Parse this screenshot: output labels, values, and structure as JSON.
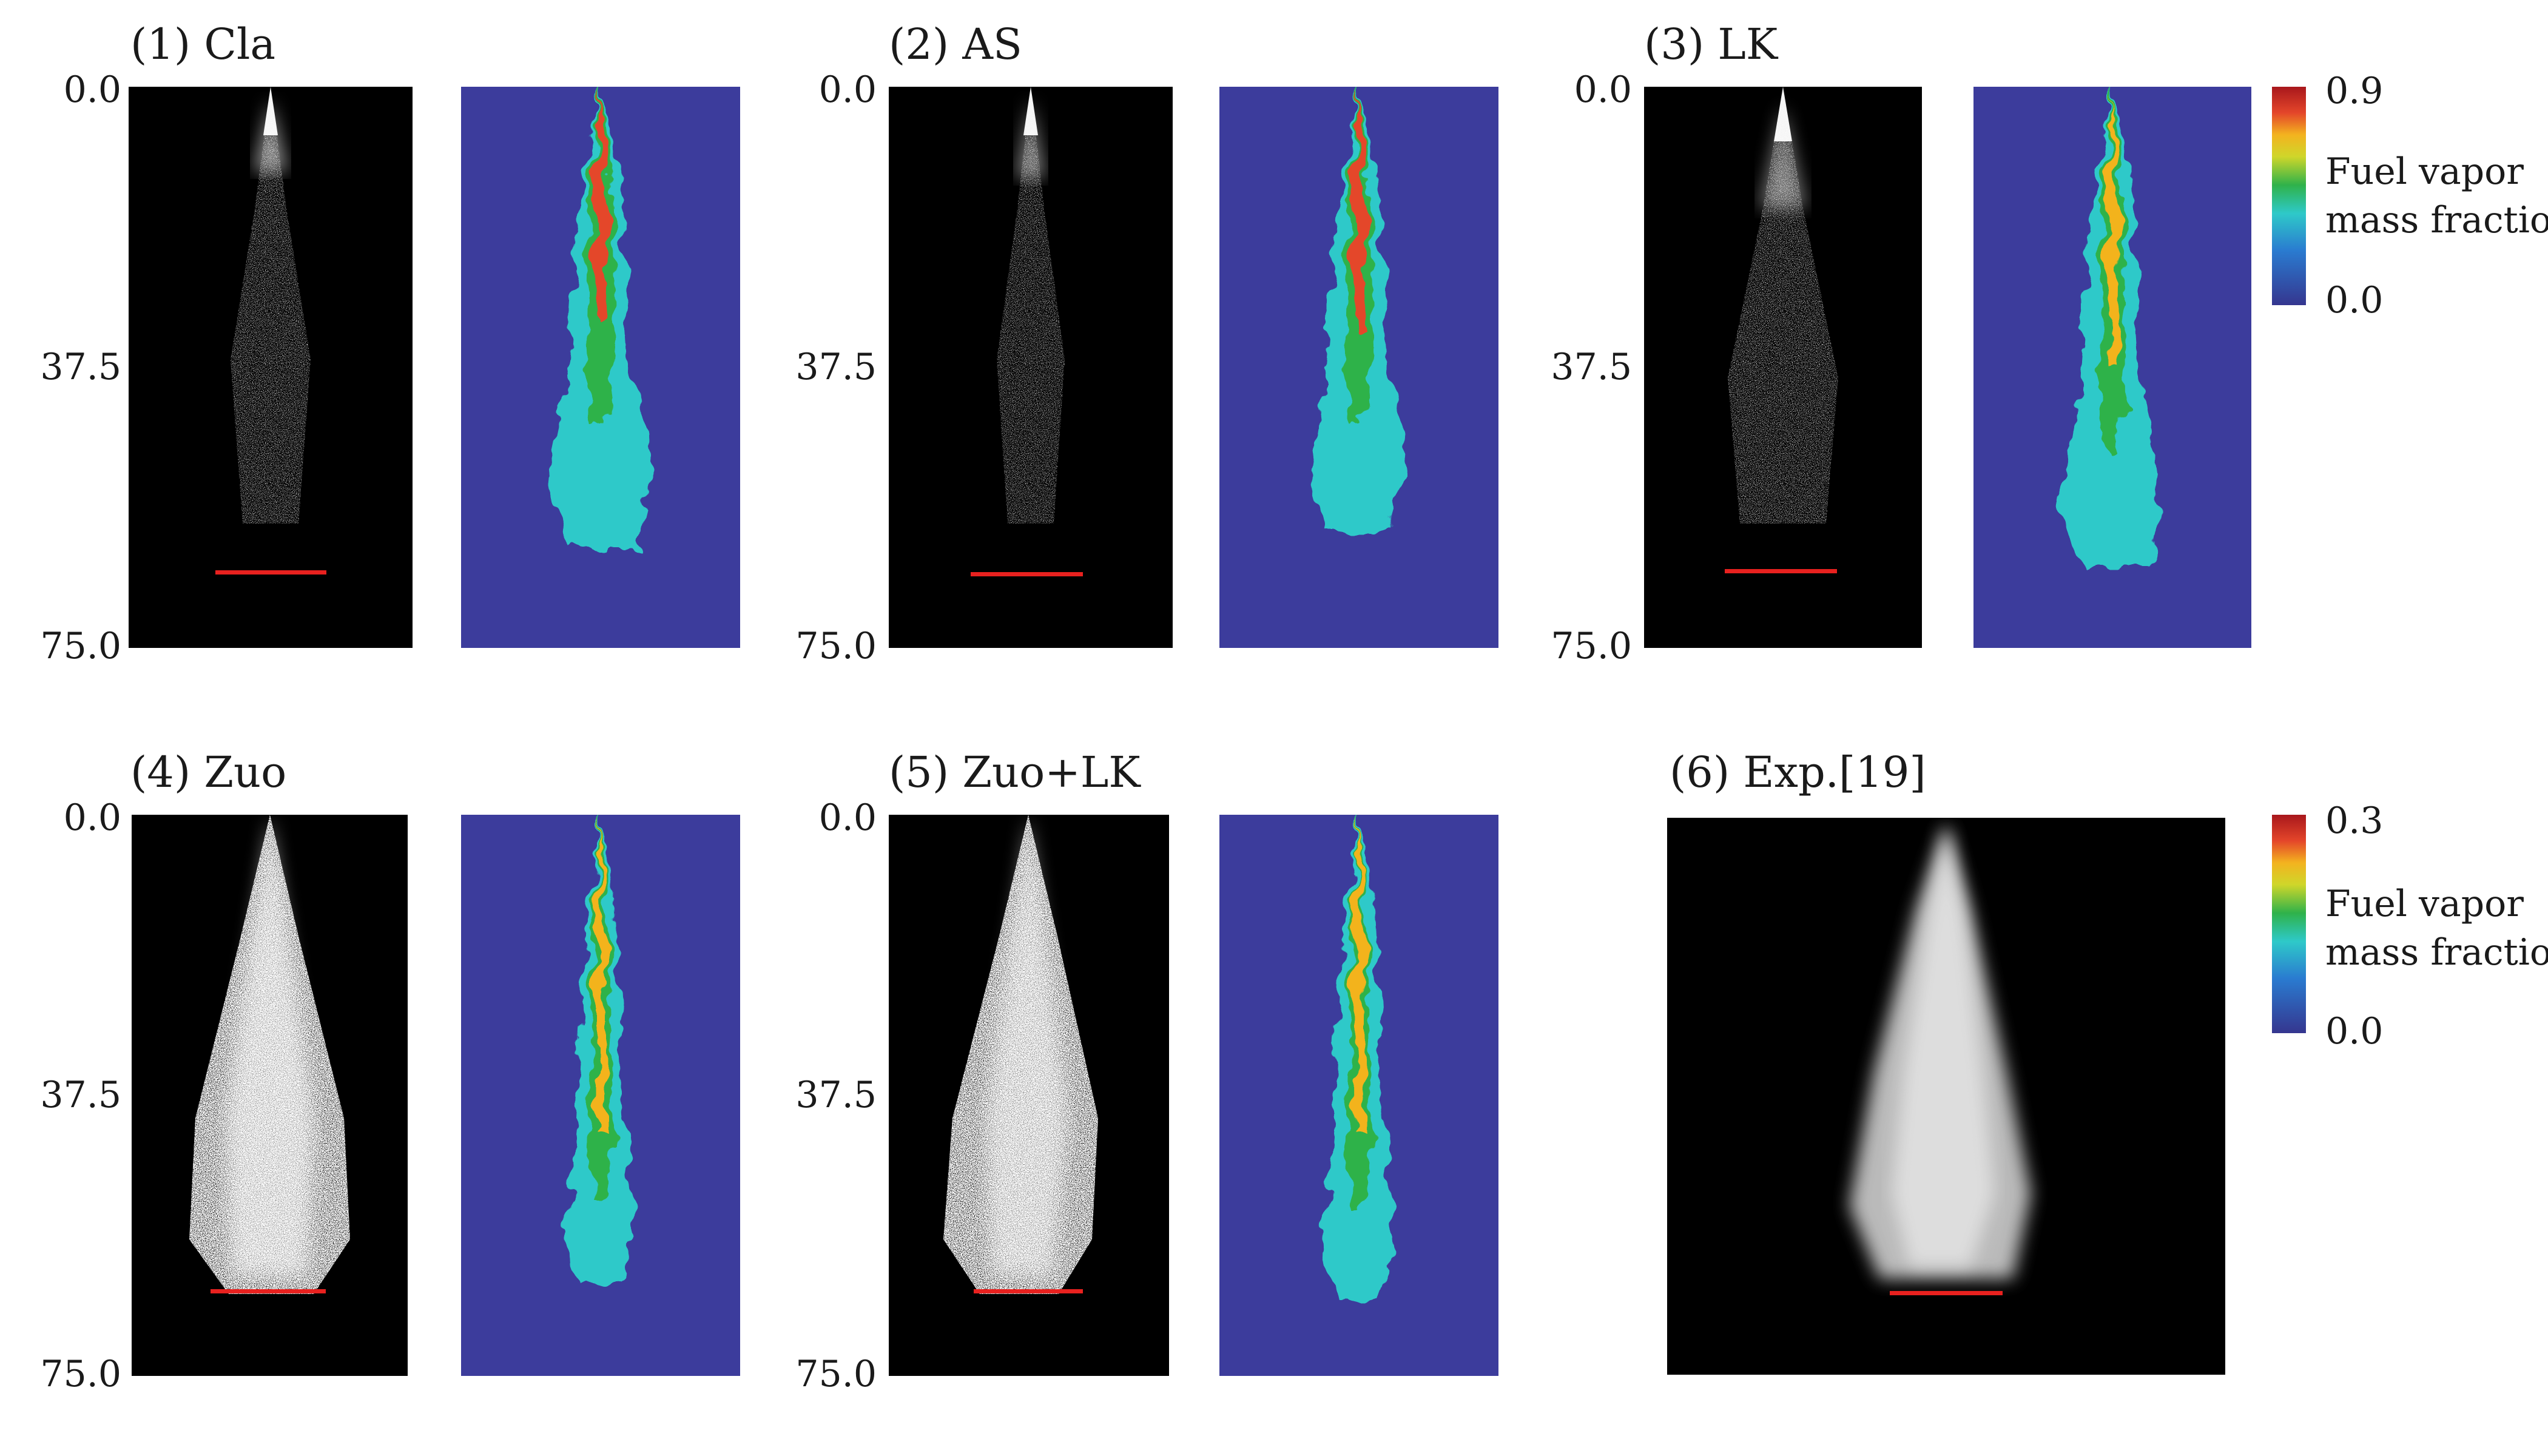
{
  "rows": [
    {
      "axis_ticks": [
        "0.0",
        "37.5",
        "75.0"
      ],
      "cases": [
        {
          "title": "(1) Cla"
        },
        {
          "title": "(2) AS"
        },
        {
          "title": "(3) LK"
        }
      ],
      "colorbar": {
        "max": "0.9",
        "min": "0.0",
        "label_line1": "Fuel vapor",
        "label_line2": "mass fraction"
      }
    },
    {
      "axis_ticks": [
        "0.0",
        "37.5",
        "75.0"
      ],
      "cases": [
        {
          "title": "(4) Zuo"
        },
        {
          "title": "(5) Zuo+LK"
        },
        {
          "title": "(6) Exp.[19]"
        }
      ],
      "colorbar": {
        "max": "0.3",
        "min": "0.0",
        "label_line1": "Fuel vapor",
        "label_line2": "mass fraction"
      }
    }
  ],
  "colors": {
    "plume_background": "#000000",
    "field_background": "#3c3c9c",
    "marker_line": "#e8211f",
    "colormap": [
      "#35368f",
      "#2c6fc0",
      "#2ec9c9",
      "#2fb24a",
      "#f3d321",
      "#f08a1f",
      "#d62a2a",
      "#b0191e"
    ]
  }
}
